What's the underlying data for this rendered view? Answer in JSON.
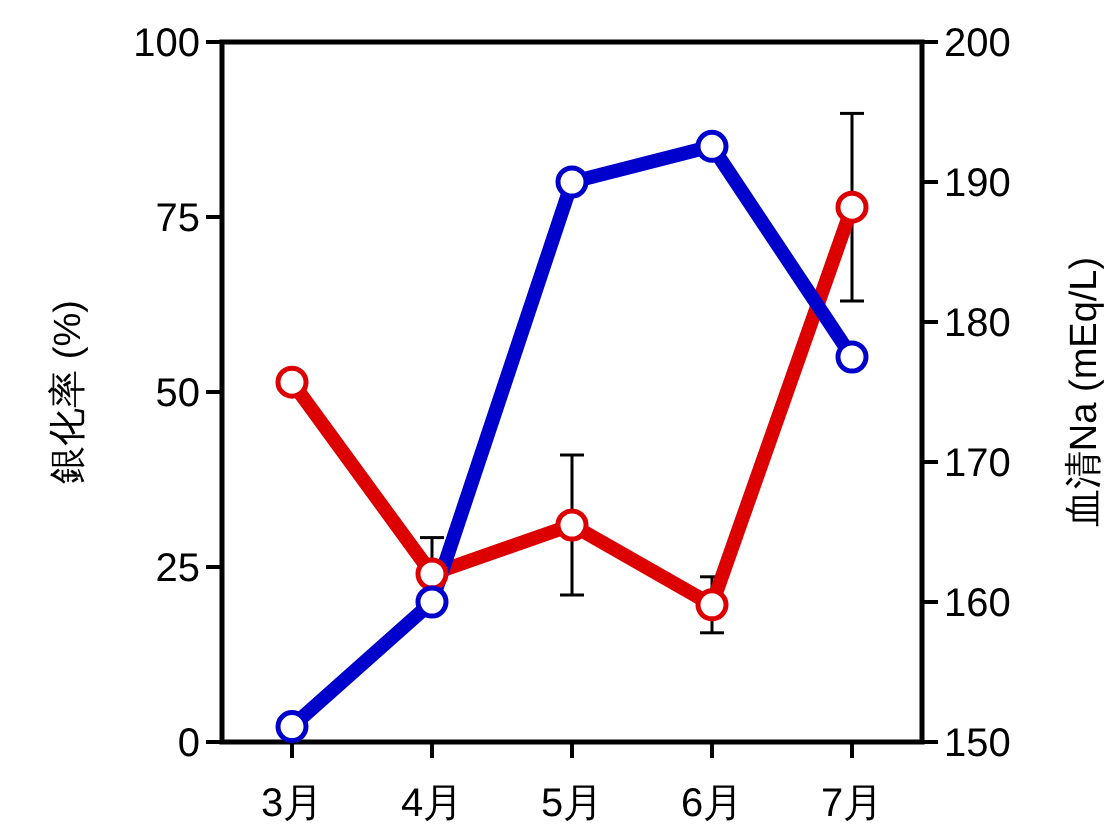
{
  "chart_data": {
    "type": "line",
    "categories": [
      "3月",
      "4月",
      "5月",
      "6月",
      "7月"
    ],
    "ylabel": "銀化率 (%)",
    "y2label": "血清Na (mEq/L)",
    "ylim": [
      0,
      100
    ],
    "yticks": [
      0,
      25,
      50,
      75,
      100
    ],
    "y2lim": [
      150,
      200
    ],
    "y2ticks": [
      150,
      160,
      170,
      180,
      190,
      200
    ],
    "marker": "circle",
    "line_style": "solid",
    "series": [
      {
        "color": "#dd0000",
        "axis": "y2",
        "values": [
          175.7,
          162.0,
          165.5,
          159.8,
          188.2
        ],
        "errors": [
          null,
          2.6,
          5.0,
          2.0,
          6.7
        ]
      },
      {
        "color": "#0000cc",
        "values": [
          2.2,
          20,
          80,
          85.1,
          55
        ]
      }
    ]
  }
}
